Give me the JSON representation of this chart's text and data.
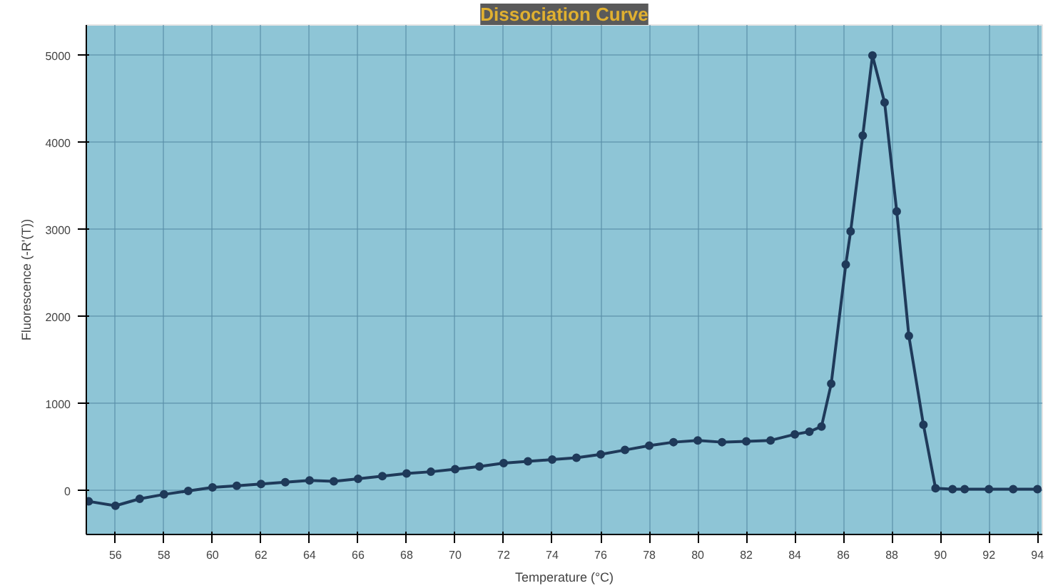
{
  "chart_data": {
    "type": "line",
    "title": "Dissociation Curve",
    "xlabel": "Temperature (°C)",
    "ylabel": "Fluorescence (-R'(T))",
    "x": [
      54.9,
      56,
      57,
      58,
      59,
      60,
      61,
      62,
      63,
      64,
      65,
      66,
      67,
      68,
      69,
      70,
      71,
      72,
      73,
      74,
      75,
      76,
      77,
      78,
      79,
      80,
      81,
      82,
      83,
      84,
      84.6,
      85.1,
      85.5,
      86.1,
      86.3,
      86.8,
      87.2,
      87.7,
      88.2,
      88.7,
      89.3,
      89.8,
      90.5,
      91,
      92,
      93,
      94
    ],
    "series": [
      {
        "color": "#1f3a5a",
        "values": [
          -120,
          -170,
          -90,
          -40,
          0,
          40,
          60,
          80,
          100,
          120,
          110,
          140,
          170,
          200,
          220,
          250,
          280,
          320,
          340,
          360,
          380,
          420,
          470,
          520,
          560,
          580,
          560,
          570,
          580,
          650,
          680,
          740,
          1230,
          2600,
          2980,
          4080,
          5000,
          4460,
          3210,
          1780,
          760,
          30,
          20,
          20,
          20,
          20,
          20
        ]
      }
    ],
    "xlim": [
      54.8,
      94.2
    ],
    "ylim": [
      -500,
      5350
    ],
    "xticks": [
      56,
      58,
      60,
      62,
      64,
      66,
      68,
      70,
      72,
      74,
      76,
      78,
      80,
      82,
      84,
      86,
      88,
      90,
      92,
      94
    ],
    "yticks": [
      0,
      1000,
      2000,
      3000,
      4000,
      5000
    ],
    "grid": true,
    "marker": "circle",
    "line_style": "solid"
  }
}
